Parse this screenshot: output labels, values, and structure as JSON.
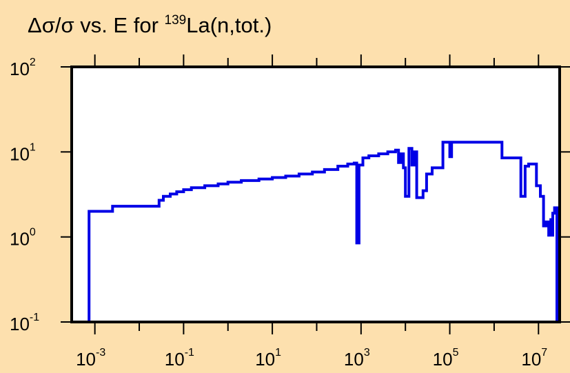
{
  "title": {
    "prefix": "Δσ/σ vs. E for ",
    "isotope_mass": "139",
    "suffix": "La(n,tot.)"
  },
  "colors": {
    "background": "#fde0ae",
    "plot_area": "#ffffff",
    "frame": "#000000",
    "series": "#0000e6"
  },
  "chart_data": {
    "type": "line",
    "title": "Δσ/σ vs. E for 139La(n,tot.)",
    "xlabel": "",
    "ylabel": "",
    "xscale": "log",
    "yscale": "log",
    "xlim": [
      0.0003,
      30000000
    ],
    "ylim": [
      0.1,
      100
    ],
    "grid": false,
    "x_ticks": [
      {
        "base": "10",
        "exp": "-3",
        "value": 0.001
      },
      {
        "base": "10",
        "exp": "-1",
        "value": 0.1
      },
      {
        "base": "10",
        "exp": "1",
        "value": 10
      },
      {
        "base": "10",
        "exp": "3",
        "value": 1000
      },
      {
        "base": "10",
        "exp": "5",
        "value": 100000
      },
      {
        "base": "10",
        "exp": "7",
        "value": 10000000
      }
    ],
    "y_ticks": [
      {
        "base": "10",
        "exp": "-1",
        "value": 0.1
      },
      {
        "base": "10",
        "exp": "0",
        "value": 1
      },
      {
        "base": "10",
        "exp": "1",
        "value": 10
      },
      {
        "base": "10",
        "exp": "2",
        "value": 100
      }
    ],
    "series": [
      {
        "style": "step",
        "points": [
          [
            0.00074,
            0.1
          ],
          [
            0.00074,
            2.0
          ],
          [
            0.0025,
            2.0
          ],
          [
            0.0025,
            2.3
          ],
          [
            0.028,
            2.3
          ],
          [
            0.028,
            2.7
          ],
          [
            0.035,
            2.7
          ],
          [
            0.035,
            3.0
          ],
          [
            0.05,
            3.0
          ],
          [
            0.05,
            3.2
          ],
          [
            0.07,
            3.2
          ],
          [
            0.07,
            3.4
          ],
          [
            0.1,
            3.4
          ],
          [
            0.1,
            3.6
          ],
          [
            0.15,
            3.6
          ],
          [
            0.15,
            3.8
          ],
          [
            0.3,
            3.8
          ],
          [
            0.3,
            4.0
          ],
          [
            0.6,
            4.0
          ],
          [
            0.6,
            4.2
          ],
          [
            1.0,
            4.2
          ],
          [
            1.0,
            4.4
          ],
          [
            2.0,
            4.4
          ],
          [
            2.0,
            4.6
          ],
          [
            5.0,
            4.6
          ],
          [
            5.0,
            4.8
          ],
          [
            10,
            4.8
          ],
          [
            10,
            5.0
          ],
          [
            20,
            5.0
          ],
          [
            20,
            5.2
          ],
          [
            40,
            5.2
          ],
          [
            40,
            5.5
          ],
          [
            80,
            5.5
          ],
          [
            80,
            5.8
          ],
          [
            150,
            5.8
          ],
          [
            150,
            6.2
          ],
          [
            300,
            6.2
          ],
          [
            300,
            6.8
          ],
          [
            500,
            6.8
          ],
          [
            500,
            7.2
          ],
          [
            700,
            7.2
          ],
          [
            700,
            7.4
          ],
          [
            800,
            7.4
          ],
          [
            800,
            0.85
          ],
          [
            900,
            0.85
          ],
          [
            900,
            7.0
          ],
          [
            1100,
            7.0
          ],
          [
            1100,
            8.5
          ],
          [
            1500,
            8.5
          ],
          [
            1500,
            9.0
          ],
          [
            2500,
            9.0
          ],
          [
            2500,
            9.5
          ],
          [
            4000,
            9.5
          ],
          [
            4000,
            10.0
          ],
          [
            6000,
            10.0
          ],
          [
            6000,
            10.5
          ],
          [
            7000,
            10.5
          ],
          [
            7000,
            7.5
          ],
          [
            8000,
            7.5
          ],
          [
            8000,
            9.5
          ],
          [
            9000,
            9.5
          ],
          [
            9000,
            6.5
          ],
          [
            10000,
            6.5
          ],
          [
            10000,
            3.0
          ],
          [
            12000,
            3.0
          ],
          [
            12000,
            11.0
          ],
          [
            14000,
            11.0
          ],
          [
            14000,
            7.0
          ],
          [
            16000,
            7.0
          ],
          [
            16000,
            10.0
          ],
          [
            18000,
            10.0
          ],
          [
            18000,
            2.9
          ],
          [
            25000,
            2.9
          ],
          [
            25000,
            3.5
          ],
          [
            30000,
            3.5
          ],
          [
            30000,
            5.5
          ],
          [
            40000,
            5.5
          ],
          [
            40000,
            6.5
          ],
          [
            70000,
            6.5
          ],
          [
            70000,
            13.0
          ],
          [
            100000,
            13.0
          ],
          [
            100000,
            8.8
          ],
          [
            110000,
            8.8
          ],
          [
            110000,
            13.0
          ],
          [
            130000,
            13.0
          ],
          [
            130000,
            13.0
          ],
          [
            1500000,
            13.0
          ],
          [
            1500000,
            8.5
          ],
          [
            4000000,
            8.5
          ],
          [
            4000000,
            3.0
          ],
          [
            5000000,
            3.0
          ],
          [
            5000000,
            6.8
          ],
          [
            6000000,
            6.8
          ],
          [
            6000000,
            7.2
          ],
          [
            9000000,
            7.2
          ],
          [
            9000000,
            4.0
          ],
          [
            11000000,
            4.0
          ],
          [
            11000000,
            3.0
          ],
          [
            13000000,
            3.0
          ],
          [
            13000000,
            1.35
          ],
          [
            15000000,
            1.35
          ],
          [
            15000000,
            1.5
          ],
          [
            17000000,
            1.5
          ],
          [
            17000000,
            1.05
          ],
          [
            19000000,
            1.05
          ],
          [
            19000000,
            1.6
          ],
          [
            20000000,
            1.6
          ],
          [
            20000000,
            1.05
          ],
          [
            21000000,
            1.05
          ],
          [
            21000000,
            1.9
          ],
          [
            23000000,
            1.9
          ],
          [
            23000000,
            2.2
          ],
          [
            26000000,
            2.2
          ],
          [
            26000000,
            0.1
          ]
        ]
      }
    ]
  }
}
